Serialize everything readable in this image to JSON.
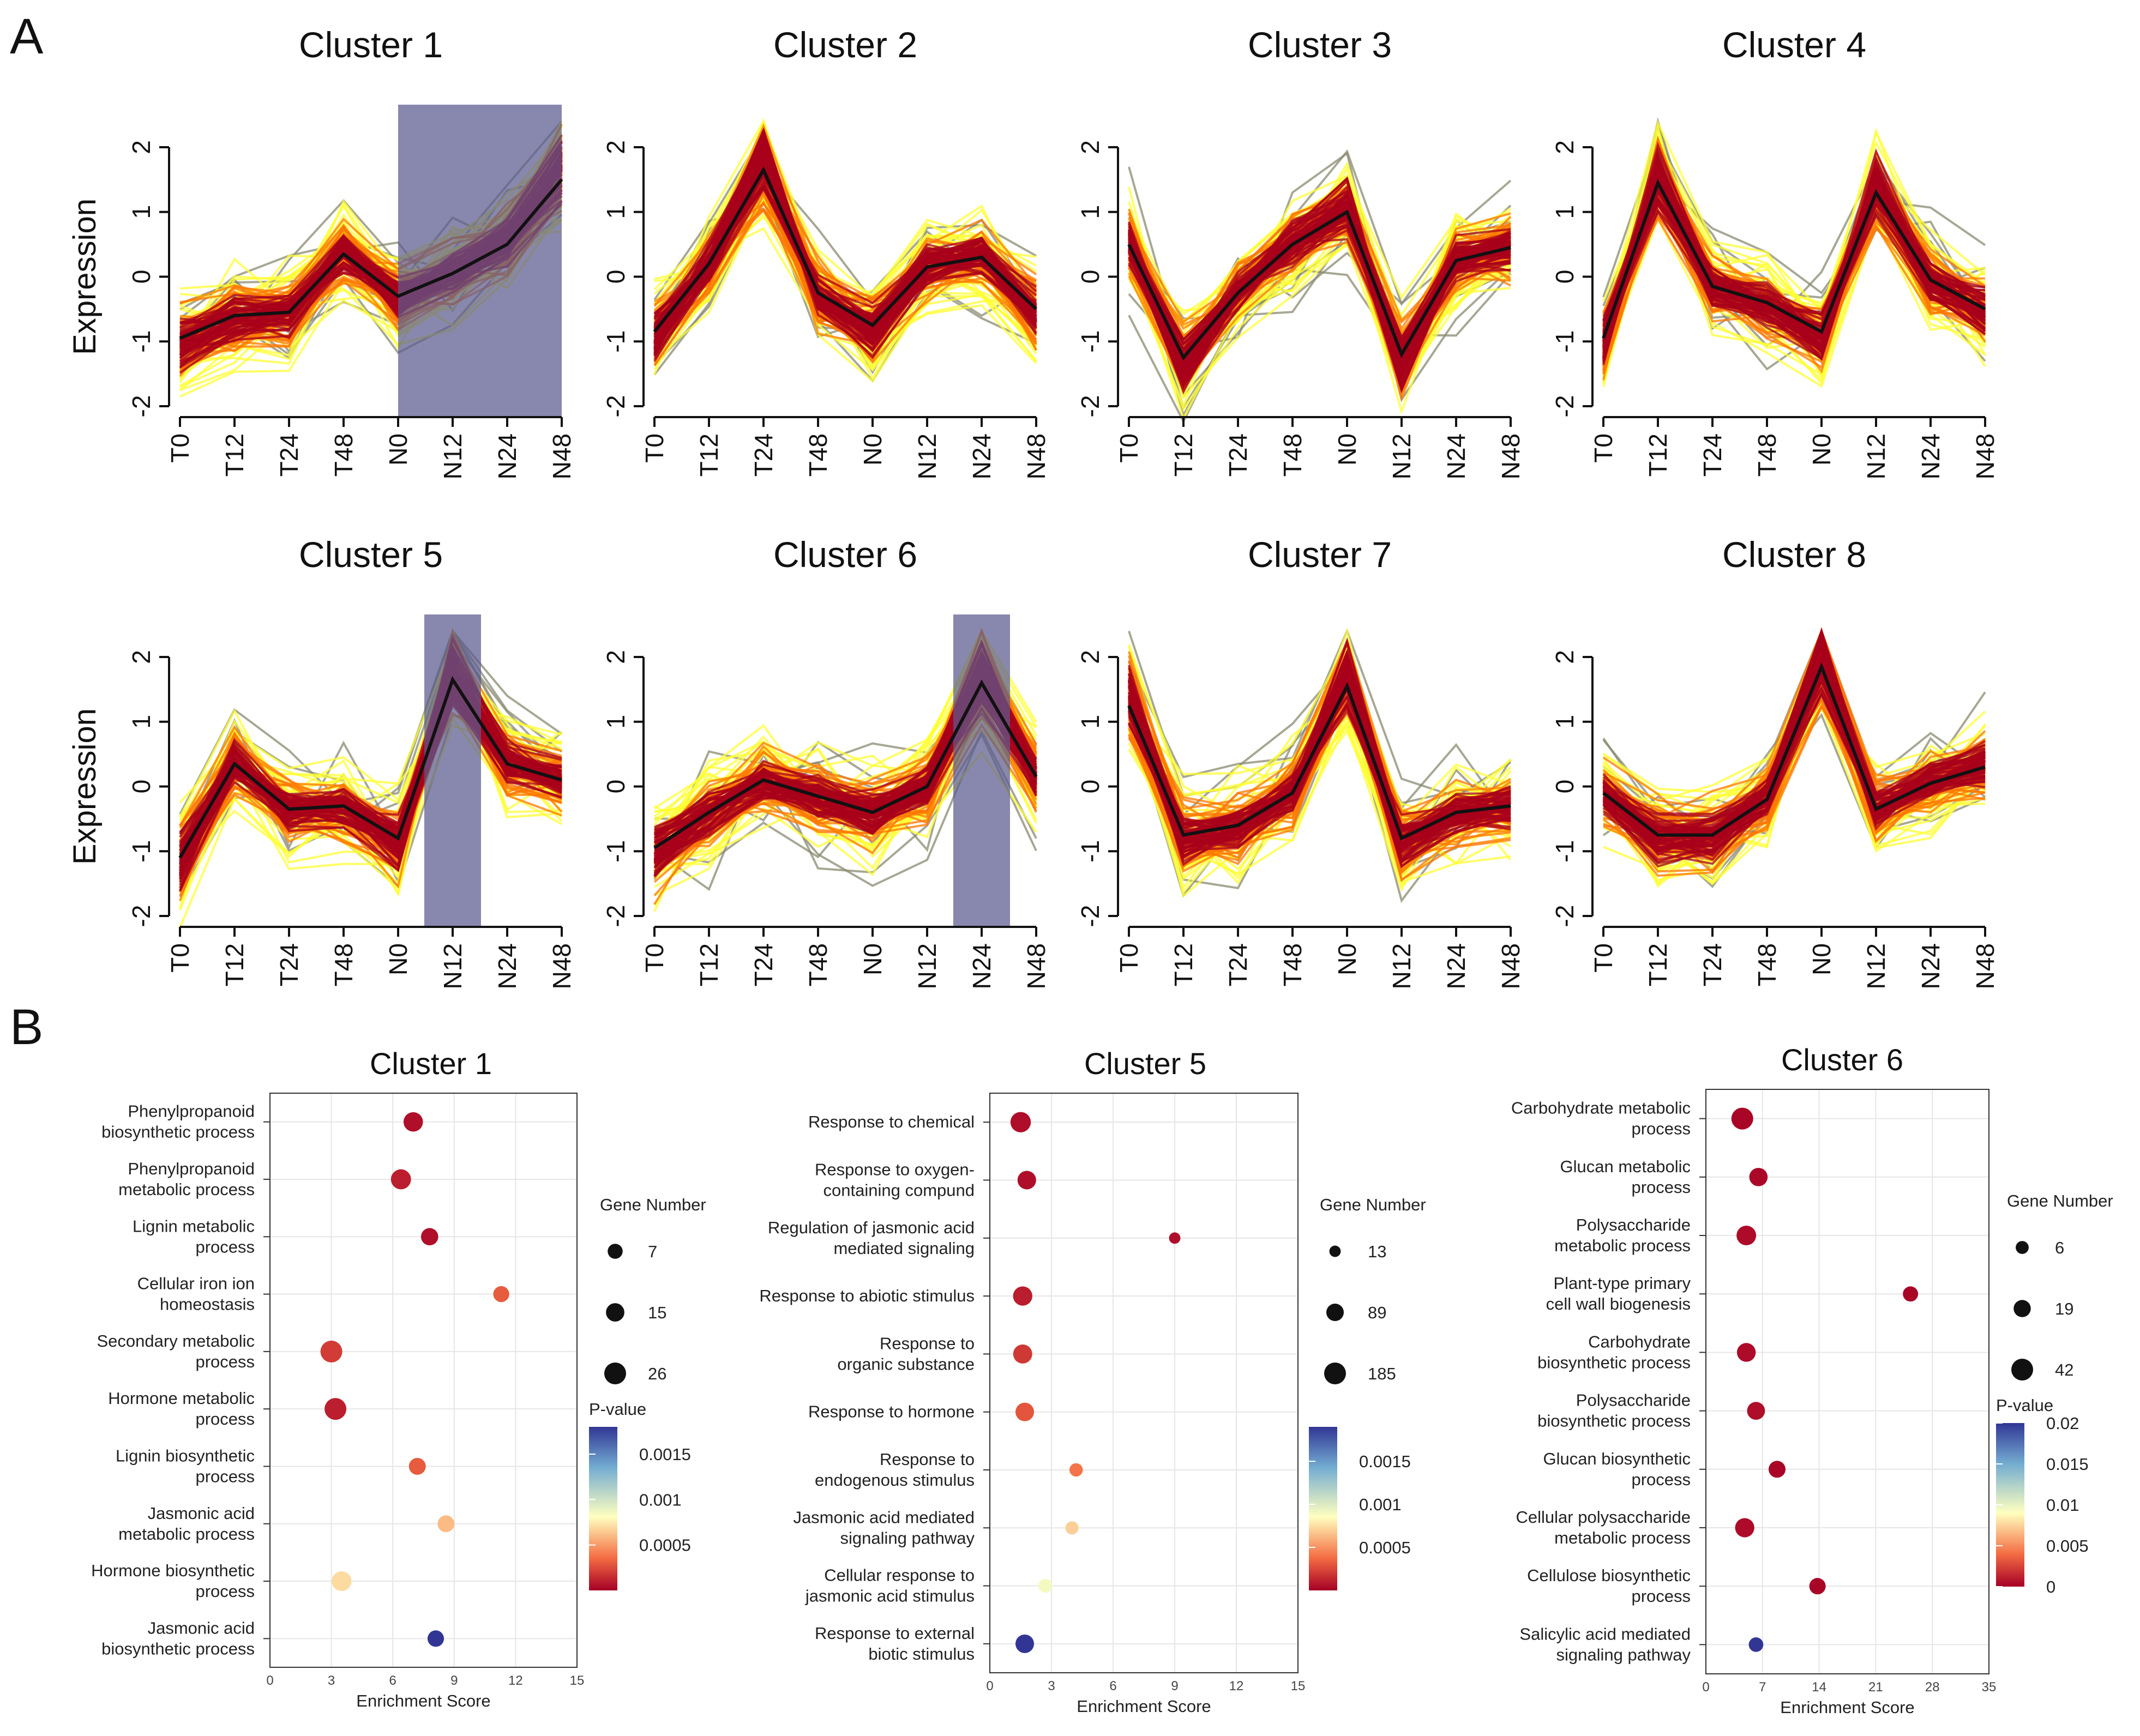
{
  "panel_labels": {
    "a": "A",
    "b": "B"
  },
  "colors": {
    "centroid": "#111111",
    "highlight": "#5a5a8f",
    "gene_low": "#ffff33",
    "gene_mid": "#ff7700",
    "gene_high": "#a8001b",
    "outlier": "#8a8a70",
    "pval_low": "#a50026",
    "pval_mid": "#ffffbf",
    "pval_high": "#313695"
  },
  "chart_data": [
    {
      "type": "line",
      "id": "profiles",
      "ylabel": "Expression",
      "ylim": [
        -2,
        2
      ],
      "yticks": [
        "-2",
        "-1",
        "0",
        "1",
        "2"
      ],
      "timepoints": [
        "T0",
        "T12",
        "T24",
        "T48",
        "N0",
        "N12",
        "N24",
        "N48"
      ],
      "clusters": [
        {
          "title": "Cluster 1",
          "centroid": [
            -0.95,
            -0.6,
            -0.55,
            0.35,
            -0.3,
            0.05,
            0.5,
            1.5
          ],
          "highlight": [
            4,
            7
          ]
        },
        {
          "title": "Cluster 2",
          "centroid": [
            -0.85,
            0.2,
            1.65,
            -0.25,
            -0.75,
            0.15,
            0.3,
            -0.5
          ],
          "highlight": null
        },
        {
          "title": "Cluster 3",
          "centroid": [
            0.5,
            -1.25,
            -0.25,
            0.5,
            1.0,
            -1.2,
            0.25,
            0.45
          ],
          "highlight": null
        },
        {
          "title": "Cluster 4",
          "centroid": [
            -0.95,
            1.45,
            -0.15,
            -0.4,
            -0.85,
            1.3,
            -0.05,
            -0.5
          ],
          "highlight": null
        },
        {
          "title": "Cluster 5",
          "centroid": [
            -1.1,
            0.35,
            -0.35,
            -0.3,
            -0.8,
            1.65,
            0.35,
            0.1
          ],
          "highlight": [
            5,
            5
          ]
        },
        {
          "title": "Cluster 6",
          "centroid": [
            -0.95,
            -0.4,
            0.1,
            -0.15,
            -0.4,
            0.0,
            1.6,
            0.15
          ],
          "highlight": [
            6,
            6
          ]
        },
        {
          "title": "Cluster 7",
          "centroid": [
            1.25,
            -0.75,
            -0.6,
            -0.1,
            1.55,
            -0.8,
            -0.4,
            -0.3
          ],
          "highlight": null
        },
        {
          "title": "Cluster 8",
          "centroid": [
            -0.1,
            -0.75,
            -0.75,
            -0.2,
            1.85,
            -0.35,
            0.05,
            0.3
          ],
          "highlight": null
        }
      ]
    },
    {
      "type": "scatter",
      "id": "go_cluster1",
      "title": "Cluster 1",
      "xlabel": "Enrichment Score",
      "xlim": [
        0,
        15
      ],
      "xticks": [
        0,
        3,
        6,
        9,
        12,
        15
      ],
      "terms": [
        {
          "lines": [
            "Phenylpropanoid",
            "biosynthetic process"
          ],
          "score": 7.0,
          "genes": 18,
          "p": 5e-05
        },
        {
          "lines": [
            "Phenylpropanoid",
            "metabolic process"
          ],
          "score": 6.4,
          "genes": 20,
          "p": 0.0001
        },
        {
          "lines": [
            "Lignin metabolic",
            "process"
          ],
          "score": 7.8,
          "genes": 12,
          "p": 5e-05
        },
        {
          "lines": [
            "Cellular iron ion",
            "homeostasis"
          ],
          "score": 11.3,
          "genes": 9,
          "p": 0.0003
        },
        {
          "lines": [
            "Secondary metabolic",
            "process"
          ],
          "score": 3.0,
          "genes": 26,
          "p": 0.0002
        },
        {
          "lines": [
            "Hormone metabolic",
            "process"
          ],
          "score": 3.2,
          "genes": 26,
          "p": 0.0001
        },
        {
          "lines": [
            "Lignin biosynthetic",
            "process"
          ],
          "score": 7.2,
          "genes": 11,
          "p": 0.0003
        },
        {
          "lines": [
            "Jasmonic acid",
            "metabolic process"
          ],
          "score": 8.6,
          "genes": 11,
          "p": 0.0006
        },
        {
          "lines": [
            "Hormone biosynthetic",
            "process"
          ],
          "score": 3.5,
          "genes": 19,
          "p": 0.0007
        },
        {
          "lines": [
            "Jasmonic acid",
            "biosynthetic process"
          ],
          "score": 8.1,
          "genes": 10,
          "p": 0.0018
        }
      ],
      "size_legend": {
        "title": "Gene Number",
        "values": [
          7,
          15,
          26
        ]
      },
      "color_legend": {
        "title": "P-value",
        "range": [
          0,
          0.0018
        ],
        "ticks": [
          0.0015,
          0.001,
          0.0005
        ],
        "tick_labels": [
          "0.0015",
          "0.001",
          "0.0005"
        ]
      }
    },
    {
      "type": "scatter",
      "id": "go_cluster5",
      "title": "Cluster 5",
      "xlabel": "Enrichment Score",
      "xlim": [
        0,
        15
      ],
      "xticks": [
        0,
        3,
        6,
        9,
        12,
        15
      ],
      "terms": [
        {
          "lines": [
            "Response to chemical"
          ],
          "score": 1.5,
          "genes": 150,
          "p": 5e-05
        },
        {
          "lines": [
            "Response to oxygen-",
            "containing compund"
          ],
          "score": 1.8,
          "genes": 110,
          "p": 5e-05
        },
        {
          "lines": [
            "Regulation of jasmonic acid",
            "mediated signaling"
          ],
          "score": 9.0,
          "genes": 13,
          "p": 5e-05
        },
        {
          "lines": [
            "Response to abiotic stimulus"
          ],
          "score": 1.6,
          "genes": 125,
          "p": 0.0001
        },
        {
          "lines": [
            "Response to",
            "organic substance"
          ],
          "score": 1.6,
          "genes": 120,
          "p": 0.0002
        },
        {
          "lines": [
            "Response to hormone"
          ],
          "score": 1.7,
          "genes": 110,
          "p": 0.0003
        },
        {
          "lines": [
            "Response to",
            "endogenous stimulus"
          ],
          "score": 4.2,
          "genes": 30,
          "p": 0.0004
        },
        {
          "lines": [
            "Jasmonic acid mediated",
            "signaling pathway"
          ],
          "score": 4.0,
          "genes": 28,
          "p": 0.0007
        },
        {
          "lines": [
            "Cellular response to",
            "jasmonic acid stimulus"
          ],
          "score": 2.7,
          "genes": 35,
          "p": 0.0009
        },
        {
          "lines": [
            "Response to external",
            "biotic stimulus"
          ],
          "score": 1.7,
          "genes": 110,
          "p": 0.0019
        }
      ],
      "size_legend": {
        "title": "Gene Number",
        "values": [
          13,
          89,
          185
        ]
      },
      "color_legend": {
        "title": "",
        "range": [
          0,
          0.0019
        ],
        "ticks": [
          0.0015,
          0.001,
          0.0005
        ],
        "tick_labels": [
          "0.0015",
          "0.001",
          "0.0005"
        ]
      }
    },
    {
      "type": "scatter",
      "id": "go_cluster6",
      "title": "Cluster 6",
      "xlabel": "Enrichment Score",
      "xlim": [
        0,
        35
      ],
      "xticks": [
        0,
        7,
        14,
        21,
        28,
        35
      ],
      "terms": [
        {
          "lines": [
            "Carbohydrate metabolic",
            "process"
          ],
          "score": 4.5,
          "genes": 42,
          "p": 0.0002
        },
        {
          "lines": [
            "Glucan metabolic",
            "process"
          ],
          "score": 6.5,
          "genes": 24,
          "p": 0.0003
        },
        {
          "lines": [
            "Polysaccharide",
            "metabolic process"
          ],
          "score": 5.0,
          "genes": 30,
          "p": 0.0004
        },
        {
          "lines": [
            "Plant-type primary",
            "cell wall biogenesis"
          ],
          "score": 25.3,
          "genes": 12,
          "p": 0.0002
        },
        {
          "lines": [
            "Carbohydrate",
            "biosynthetic process"
          ],
          "score": 5.0,
          "genes": 26,
          "p": 0.0004
        },
        {
          "lines": [
            "Polysaccharide",
            "biosynthetic process"
          ],
          "score": 6.2,
          "genes": 22,
          "p": 0.0005
        },
        {
          "lines": [
            "Glucan biosynthetic",
            "process"
          ],
          "score": 8.8,
          "genes": 18,
          "p": 0.0002
        },
        {
          "lines": [
            "Cellular polysaccharide",
            "metabolic process"
          ],
          "score": 4.8,
          "genes": 28,
          "p": 0.0004
        },
        {
          "lines": [
            "Cellulose biosynthetic",
            "process"
          ],
          "score": 13.8,
          "genes": 16,
          "p": 0.0002
        },
        {
          "lines": [
            "Salicylic acid mediated",
            "signaling pathway"
          ],
          "score": 6.2,
          "genes": 10,
          "p": 0.02
        }
      ],
      "size_legend": {
        "title": "Gene Number",
        "values": [
          6,
          19,
          42
        ]
      },
      "color_legend": {
        "title": "P-value",
        "range": [
          0,
          0.02
        ],
        "ticks": [
          0.02,
          0.015,
          0.01,
          0.005,
          0
        ],
        "tick_labels": [
          "0.02",
          "0.015",
          "0.01",
          "0.005",
          "0"
        ]
      }
    }
  ]
}
